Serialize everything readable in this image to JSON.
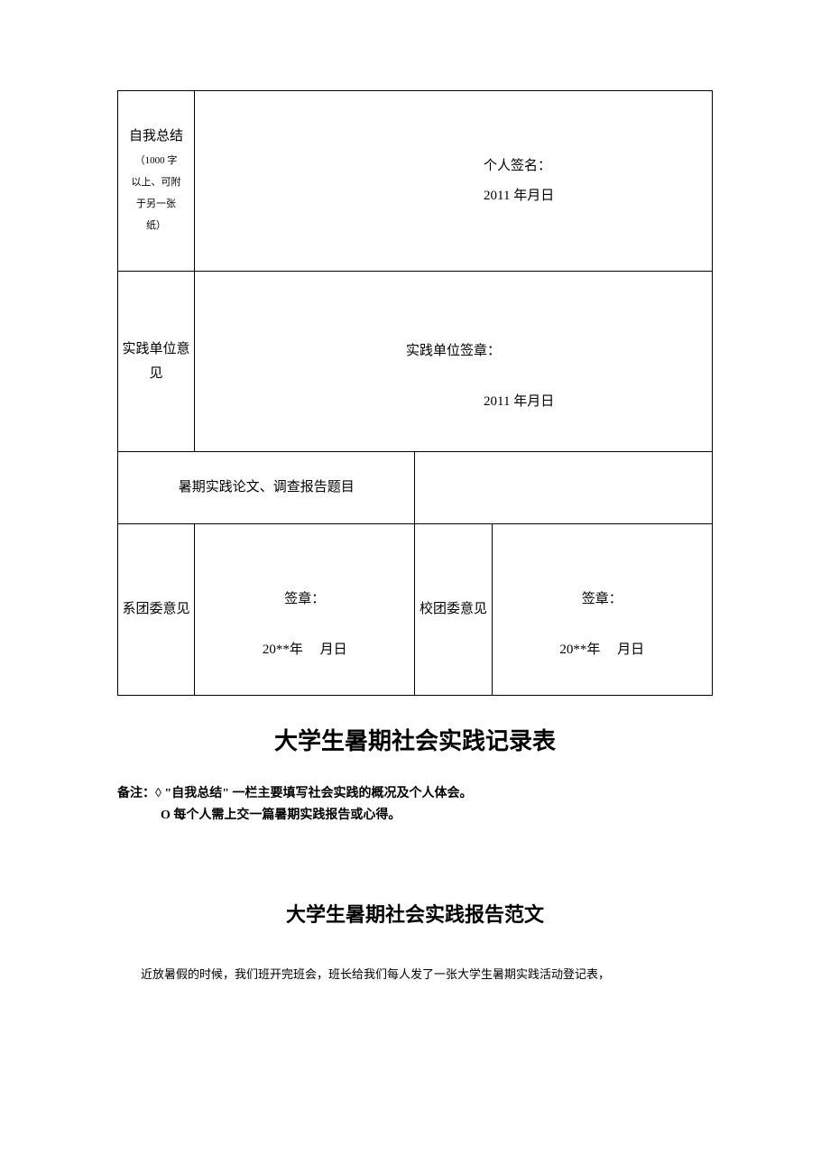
{
  "table": {
    "row1": {
      "label_main": "自我总结",
      "label_sub1": "（1000 字",
      "label_sub2": "以上、可附",
      "label_sub3": "于另一张",
      "label_sub4": "纸）",
      "signature_label": "个人签名：",
      "date": "2011 年月日"
    },
    "row2": {
      "label": "实践单位意见",
      "signature_label": "实践单位签章：",
      "date": "2011 年月日"
    },
    "row3": {
      "label": "暑期实践论文、调查报告题目"
    },
    "row4": {
      "col1_label": "系团委意见",
      "col1_sig": "签章：",
      "col1_date": "20**年     月日",
      "col2_label": "校团委意见",
      "col2_sig": "签章：",
      "col2_date": "20**年     月日"
    }
  },
  "title1": "大学生暑期社会实践记录表",
  "notes": {
    "line1": "备注：◊ \"自我总结\" 一栏主要填写社会实践的概况及个人体会。",
    "line2": "O 每个人需上交一篇暑期实践报告或心得。"
  },
  "title2": "大学生暑期社会实践报告范文",
  "body_text": "近放暑假的时候，我们班开完班会，班长给我们每人发了一张大学生暑期实践活动登记表，"
}
